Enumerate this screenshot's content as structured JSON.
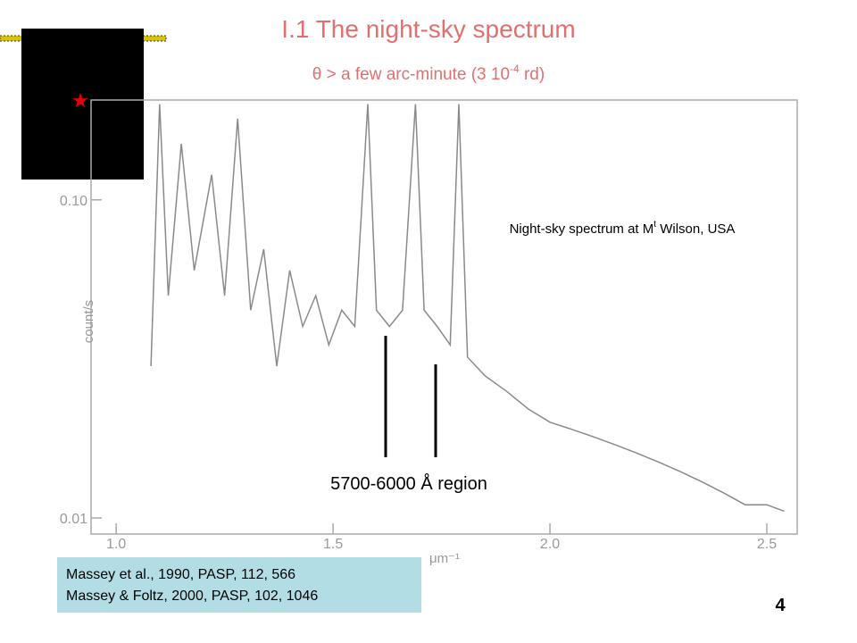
{
  "slide": {
    "title": "I.1 The night-sky spectrum",
    "subtitle": [
      "θ > a few arc-minute (3 10",
      "-4",
      " rd)"
    ],
    "references": [
      "Massey et al., 1990, PASP, 112, 566",
      "Massey & Foltz, 2000, PASP, 102, 1046"
    ],
    "page_number": "4"
  },
  "chart_data": {
    "type": "line",
    "ylog": true,
    "grid": false,
    "xlabel": "μm⁻¹",
    "ylabel": "count/s",
    "annotation": [
      "Night-sky spectrum at M",
      "t",
      " Wilson, USA"
    ],
    "region_label": "5700-6000 Å region",
    "xlim": [
      0.942,
      2.57
    ],
    "ylim": [
      0.0089,
      0.206
    ],
    "xticks": [
      {
        "value": 1,
        "label": "1.0"
      },
      1.5,
      {
        "value": 2,
        "label": "2.0"
      },
      2.5
    ],
    "yticks": [
      {
        "value": 0.1,
        "label": "0.10"
      },
      0.01
    ],
    "x": [
      1.08,
      1.1,
      1.12,
      1.15,
      1.18,
      1.22,
      1.25,
      1.28,
      1.31,
      1.34,
      1.37,
      1.4,
      1.43,
      1.46,
      1.49,
      1.52,
      1.55,
      1.58,
      1.6,
      1.63,
      1.66,
      1.69,
      1.71,
      1.74,
      1.77,
      1.79,
      1.81,
      1.85,
      1.9,
      1.95,
      2.0,
      2.05,
      2.1,
      2.15,
      2.2,
      2.25,
      2.3,
      2.35,
      2.4,
      2.45,
      2.5,
      2.54
    ],
    "series": [
      {
        "color": "#8a8a8a",
        "values": [
          0.03,
          0.2,
          0.05,
          0.15,
          0.06,
          0.12,
          0.05,
          0.18,
          0.045,
          0.07,
          0.03,
          0.06,
          0.04,
          0.05,
          0.035,
          0.045,
          0.04,
          0.2,
          0.045,
          0.04,
          0.045,
          0.2,
          0.045,
          0.04,
          0.035,
          0.2,
          0.032,
          0.028,
          0.025,
          0.022,
          0.02,
          0.019,
          0.018,
          0.017,
          0.016,
          0.015,
          0.014,
          0.013,
          0.012,
          0.011,
          0.011,
          0.0105
        ]
      }
    ]
  }
}
